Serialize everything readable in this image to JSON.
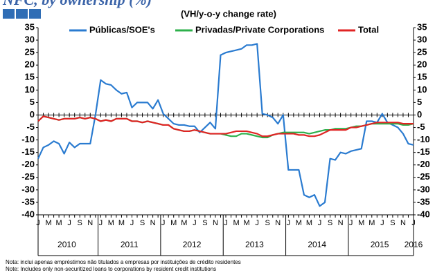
{
  "chart_data": {
    "type": "line",
    "title": "NFC, by ownership (%)",
    "subtitle": "(VH/y-o-y change rate)",
    "categories": [
      "J",
      null,
      "M",
      null,
      "M",
      null,
      "J",
      null,
      "S",
      null,
      "N",
      null,
      "J",
      null,
      "M",
      null,
      "M",
      null,
      "J",
      null,
      "S",
      null,
      "N",
      null,
      "J",
      null,
      "M",
      null,
      "M",
      null,
      "J",
      null,
      "S",
      null,
      "N",
      null,
      "J",
      null,
      "M",
      null,
      "M",
      null,
      "J",
      null,
      "S",
      null,
      "N",
      null,
      "J",
      null,
      "M",
      null,
      "M",
      null,
      "J",
      null,
      "S",
      null,
      "N",
      null,
      "J",
      null,
      "M",
      null,
      "M",
      null,
      "J",
      null,
      "S",
      null,
      "N",
      null,
      "J"
    ],
    "years": [
      "2010",
      "2011",
      "2012",
      "2013",
      "2014",
      "2015",
      "2016"
    ],
    "series": [
      {
        "name": "Públicas/SOE's",
        "color": "#2a7bd0",
        "values": [
          -17.5,
          -13,
          -12,
          -10.5,
          -11.5,
          -15.5,
          -11,
          -13,
          -11.5,
          -11.5,
          -11.5,
          0,
          14,
          12.5,
          12,
          10,
          8.5,
          9,
          3,
          5,
          5,
          5,
          2.5,
          6,
          0.5,
          -1.5,
          -3.5,
          -4,
          -4,
          -4.5,
          -4.5,
          -7,
          -5,
          -3,
          -5.5,
          24,
          25,
          25.5,
          26,
          26.5,
          28,
          28,
          28.5,
          0.5,
          0,
          -1,
          -3.5,
          0,
          -22,
          -22,
          -22,
          -32,
          -33,
          -32,
          -36.5,
          -35,
          -17.5,
          -18,
          -15,
          -15.5,
          -14.5,
          -14,
          -13.5,
          -2.5,
          -2.5,
          -3,
          0.5,
          -3,
          -4,
          -5,
          -7.5,
          -11.5,
          -12
        ]
      },
      {
        "name": "Privadas/Private Corporations",
        "color": "#2db04b",
        "values": [
          -2.5,
          -0.5,
          -1,
          -1.5,
          -2,
          -1.5,
          -1.5,
          -1.5,
          -1,
          -1.5,
          -1,
          -1.5,
          -2.5,
          -2,
          -2.5,
          -1.5,
          -1.5,
          -1.5,
          -2.5,
          -2.5,
          -3,
          -2.5,
          -3,
          -3.5,
          -4,
          -4,
          -5.5,
          -6,
          -6.5,
          -6.5,
          -6,
          -6.5,
          -7,
          -7.5,
          -7.5,
          -7.5,
          -8,
          -8.5,
          -8.5,
          -7.5,
          -7.5,
          -8,
          -8.5,
          -9,
          -9,
          -8,
          -7.5,
          -7,
          -7,
          -7,
          -7,
          -7,
          -7.5,
          -7,
          -6.5,
          -6,
          -6,
          -5.5,
          -5.5,
          -5.5,
          -5,
          -4.5,
          -4.5,
          -4,
          -3.5,
          -3.5,
          -3.5,
          -3.5,
          -3.5,
          -3.5,
          -4,
          -4,
          -3.5
        ]
      },
      {
        "name": "Total",
        "color": "#e02424",
        "values": [
          -2.5,
          -0.5,
          -1,
          -1.5,
          -2,
          -1.5,
          -1.5,
          -1.5,
          -1,
          -1.5,
          -1,
          -1.5,
          -2.5,
          -2,
          -2.5,
          -1.5,
          -1.5,
          -1.5,
          -2.5,
          -2.5,
          -3,
          -2.5,
          -3,
          -3.5,
          -4,
          -4,
          -5.5,
          -6,
          -6.5,
          -6.5,
          -6,
          -6.5,
          -7,
          -7.5,
          -7.5,
          -7.5,
          -7.5,
          -7,
          -6.5,
          -6.5,
          -6.5,
          -7,
          -7.5,
          -8.5,
          -8.5,
          -8,
          -7.5,
          -7.5,
          -7.5,
          -7.5,
          -8,
          -8,
          -8.5,
          -8.5,
          -8,
          -7,
          -6,
          -6,
          -6,
          -6,
          -5,
          -5,
          -4.5,
          -4,
          -3.5,
          -3,
          -3,
          -3,
          -3,
          -3,
          -3.5,
          -3.5,
          -3.5
        ]
      }
    ],
    "ylim": [
      -40,
      35
    ],
    "yticks": [
      -40,
      -35,
      -30,
      -25,
      -20,
      -15,
      -10,
      -5,
      0,
      5,
      10,
      15,
      20,
      25,
      30,
      35
    ],
    "y2lim": [
      -40,
      35
    ],
    "y2ticks": [
      -40,
      -35,
      -30,
      -25,
      -20,
      -15,
      -10,
      -5,
      0,
      5,
      10,
      15,
      20,
      25,
      30,
      35
    ],
    "notes": [
      "Nota: inclui apenas empréstimos não titulados a empresas por instituições de crédito residentes",
      "Note: Includes only non-securitized loans to corporations by resident credit institutions"
    ]
  }
}
